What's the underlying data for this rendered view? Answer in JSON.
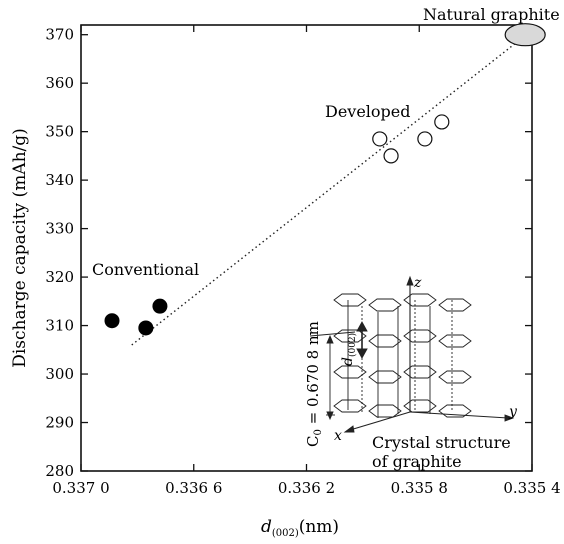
{
  "chart_data": {
    "type": "scatter",
    "xlabel_main": "d",
    "xlabel_sub": "(002)",
    "xlabel_unit": "(nm)",
    "ylabel": "Discharge capacity (mAh/g)",
    "xlim": [
      0.337,
      0.3354
    ],
    "ylim": [
      280,
      372
    ],
    "x_reversed": true,
    "x_ticks": [
      0.337,
      0.3366,
      0.3362,
      0.3358,
      0.3354
    ],
    "x_tick_labels": [
      "0.337 0",
      "0.336 6",
      "0.336 2",
      "0.335 8",
      "0.335 4"
    ],
    "y_ticks": [
      280,
      290,
      300,
      310,
      320,
      330,
      340,
      350,
      360,
      370
    ],
    "y_tick_labels": [
      "280",
      "290",
      "300",
      "310",
      "320",
      "330",
      "340",
      "350",
      "360",
      "370"
    ],
    "grid": false,
    "series": [
      {
        "name": "Conventional",
        "marker": "filled-circle",
        "points": [
          {
            "x": 0.33689,
            "y": 311
          },
          {
            "x": 0.33677,
            "y": 309.5
          },
          {
            "x": 0.33672,
            "y": 314
          }
        ]
      },
      {
        "name": "Developed",
        "marker": "open-circle",
        "points": [
          {
            "x": 0.33594,
            "y": 348.5
          },
          {
            "x": 0.3359,
            "y": 345
          },
          {
            "x": 0.33578,
            "y": 348.5
          },
          {
            "x": 0.33572,
            "y": 352
          }
        ]
      },
      {
        "name": "Natural graphite",
        "marker": "ellipse",
        "points": [
          {
            "x": 0.33541,
            "y": 370
          }
        ]
      }
    ],
    "trendline": {
      "style": "dotted",
      "from": {
        "x": 0.33682,
        "y": 306
      },
      "to": {
        "x": 0.33542,
        "y": 370
      }
    },
    "annotations": {
      "conventional": "Conventional",
      "developed": "Developed",
      "natural": "Natural graphite",
      "inset_c0": "C",
      "inset_c0_sub": "0",
      "inset_c0_value": " = 0.670 8 nm",
      "inset_d": "d",
      "inset_d_sub": "(002)",
      "inset_x": "x",
      "inset_y": "y",
      "inset_z": "z",
      "inset_caption_1": "Crystal structure",
      "inset_caption_2": "of graphite"
    }
  }
}
